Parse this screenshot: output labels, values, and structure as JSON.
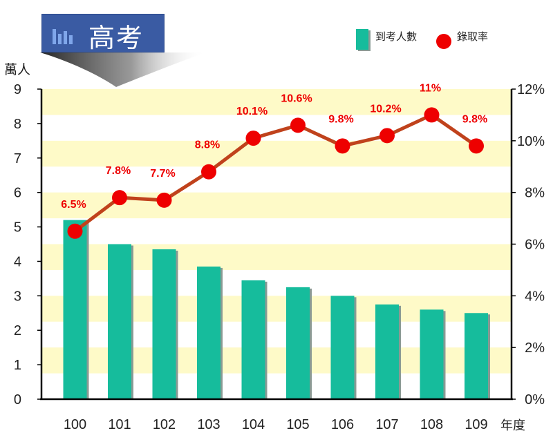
{
  "title": "高考",
  "y_left_unit": "萬人",
  "x_unit": "年度",
  "colors": {
    "bar": "#16bc9c",
    "bar_shadow": "#8a9a94",
    "line": "#c0421c",
    "dot": "#ee0000",
    "band": "#fefac8",
    "banner": "#3a5ba3"
  },
  "icons": {
    "title_icon": "bar-chart-icon"
  },
  "chart_data": {
    "type": "bar",
    "categories": [
      "100",
      "101",
      "102",
      "103",
      "104",
      "105",
      "106",
      "107",
      "108",
      "109"
    ],
    "series": [
      {
        "name": "到考人數",
        "type": "bar",
        "axis": "left",
        "values": [
          5.2,
          4.5,
          4.35,
          3.85,
          3.45,
          3.25,
          3.0,
          2.75,
          2.6,
          2.5
        ]
      },
      {
        "name": "錄取率",
        "type": "line",
        "axis": "right",
        "values": [
          6.5,
          7.8,
          7.7,
          8.8,
          10.1,
          10.6,
          9.8,
          10.2,
          11,
          9.8
        ],
        "labels": [
          "6.5%",
          "7.8%",
          "7.7%",
          "8.8%",
          "10.1%",
          "10.6%",
          "9.8%",
          "10.2%",
          "11%",
          "9.8%"
        ]
      }
    ],
    "y_left": {
      "min": 0,
      "max": 9,
      "ticks": [
        "0",
        "1",
        "2",
        "3",
        "4",
        "5",
        "6",
        "7",
        "8",
        "9"
      ]
    },
    "y_right": {
      "min": 0,
      "max": 12,
      "ticks": [
        "0%",
        "2%",
        "4%",
        "6%",
        "8%",
        "10%",
        "12%"
      ]
    },
    "legend_position": "top-right",
    "grid": false
  }
}
